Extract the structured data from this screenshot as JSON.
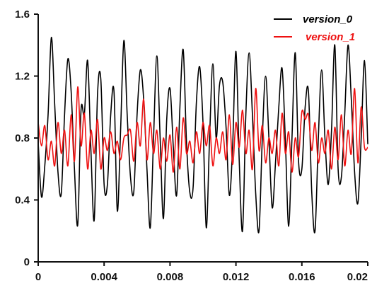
{
  "chart_data": {
    "type": "line",
    "title": "",
    "xlabel": "",
    "ylabel": "",
    "xlim": [
      0,
      0.02
    ],
    "ylim": [
      0,
      1.6
    ],
    "xticks": [
      "0",
      "0.004",
      "0.008",
      "0.012",
      "0.016",
      "0.02"
    ],
    "yticks": [
      "0",
      "0.4",
      "0.8",
      "1.2",
      "1.6"
    ],
    "grid": false,
    "legend_position": "top-right",
    "series": [
      {
        "name": "version_0",
        "color": "#000000",
        "x": [
          0.0,
          0.0002,
          0.0004,
          0.0006,
          0.0008,
          0.001,
          0.0012,
          0.0014,
          0.0016,
          0.0018,
          0.002,
          0.0022,
          0.0024,
          0.0026,
          0.0028,
          0.003,
          0.0032,
          0.0034,
          0.0036,
          0.0038,
          0.004,
          0.0042,
          0.0044,
          0.0046,
          0.0048,
          0.005,
          0.0052,
          0.0054,
          0.0056,
          0.0058,
          0.006,
          0.0062,
          0.0064,
          0.0066,
          0.0068,
          0.007,
          0.0072,
          0.0074,
          0.0076,
          0.0078,
          0.008,
          0.0082,
          0.0084,
          0.0086,
          0.0088,
          0.009,
          0.0092,
          0.0094,
          0.0096,
          0.0098,
          0.01,
          0.0102,
          0.0104,
          0.0106,
          0.0108,
          0.011,
          0.0112,
          0.0114,
          0.0116,
          0.0118,
          0.012,
          0.0122,
          0.0124,
          0.0126,
          0.0128,
          0.013,
          0.0132,
          0.0134,
          0.0136,
          0.0138,
          0.014,
          0.0142,
          0.0144,
          0.0146,
          0.0148,
          0.015,
          0.0152,
          0.0154,
          0.0156,
          0.0158,
          0.016,
          0.0162,
          0.0164,
          0.0166,
          0.0168,
          0.017,
          0.0172,
          0.0174,
          0.0176,
          0.0178,
          0.018,
          0.0182,
          0.0184,
          0.0186,
          0.0188,
          0.019,
          0.0192,
          0.0194,
          0.0196,
          0.0198,
          0.02
        ],
        "y": [
          0.77,
          0.42,
          0.62,
          0.95,
          1.45,
          1.02,
          0.58,
          0.44,
          0.95,
          1.31,
          1.1,
          0.6,
          0.24,
          0.98,
          0.95,
          1.3,
          0.72,
          0.27,
          1.08,
          1.18,
          0.5,
          0.5,
          0.95,
          1.1,
          0.33,
          0.85,
          1.43,
          0.95,
          0.55,
          0.45,
          0.95,
          1.24,
          1.05,
          0.6,
          0.22,
          0.8,
          1.33,
          0.8,
          0.28,
          0.92,
          1.12,
          0.74,
          0.43,
          1.0,
          1.37,
          0.77,
          0.45,
          0.48,
          1.03,
          1.26,
          0.9,
          0.22,
          0.8,
          1.28,
          0.8,
          1.14,
          1.16,
          0.87,
          0.43,
          0.75,
          1.36,
          0.65,
          0.2,
          0.95,
          1.35,
          0.95,
          0.44,
          0.2,
          0.8,
          1.2,
          0.8,
          0.35,
          0.64,
          1.0,
          1.25,
          0.78,
          0.23,
          0.8,
          1.35,
          0.65,
          0.6,
          1.0,
          1.1,
          0.45,
          0.2,
          0.8,
          1.24,
          0.8,
          0.5,
          0.85,
          1.4,
          0.6,
          0.55,
          0.95,
          1.4,
          1.05,
          0.58,
          0.38,
          0.8,
          1.3,
          0.76
        ]
      },
      {
        "name": "version_1",
        "color": "#ee1111",
        "x": [
          0.0,
          0.0002,
          0.0004,
          0.0006,
          0.0008,
          0.001,
          0.0012,
          0.0014,
          0.0016,
          0.0018,
          0.002,
          0.0022,
          0.0024,
          0.0026,
          0.0028,
          0.003,
          0.0032,
          0.0034,
          0.0036,
          0.0038,
          0.004,
          0.0042,
          0.0044,
          0.0046,
          0.0048,
          0.005,
          0.0052,
          0.0054,
          0.0056,
          0.0058,
          0.006,
          0.0062,
          0.0064,
          0.0066,
          0.0068,
          0.007,
          0.0072,
          0.0074,
          0.0076,
          0.0078,
          0.008,
          0.0082,
          0.0084,
          0.0086,
          0.0088,
          0.009,
          0.0092,
          0.0094,
          0.0096,
          0.0098,
          0.01,
          0.0102,
          0.0104,
          0.0106,
          0.0108,
          0.011,
          0.0112,
          0.0114,
          0.0116,
          0.0118,
          0.012,
          0.0122,
          0.0124,
          0.0126,
          0.0128,
          0.013,
          0.0132,
          0.0134,
          0.0136,
          0.0138,
          0.014,
          0.0142,
          0.0144,
          0.0146,
          0.0148,
          0.015,
          0.0152,
          0.0154,
          0.0156,
          0.0158,
          0.016,
          0.0162,
          0.0164,
          0.0166,
          0.0168,
          0.017,
          0.0172,
          0.0174,
          0.0176,
          0.0178,
          0.018,
          0.0182,
          0.0184,
          0.0186,
          0.0188,
          0.019,
          0.0192,
          0.0194,
          0.0196,
          0.0198,
          0.02
        ],
        "y": [
          0.9,
          0.75,
          0.88,
          0.66,
          0.78,
          0.62,
          0.9,
          0.7,
          0.85,
          0.62,
          0.95,
          0.65,
          1.13,
          0.75,
          0.96,
          0.6,
          0.85,
          0.7,
          0.92,
          0.6,
          0.8,
          0.72,
          0.84,
          0.7,
          0.78,
          0.66,
          0.8,
          0.82,
          0.85,
          0.65,
          0.9,
          0.75,
          1.05,
          0.66,
          0.9,
          0.7,
          0.85,
          0.6,
          0.8,
          0.65,
          0.82,
          0.58,
          0.87,
          0.6,
          0.93,
          0.7,
          0.78,
          0.64,
          0.84,
          0.7,
          0.9,
          0.75,
          0.88,
          0.62,
          0.8,
          0.7,
          0.84,
          0.66,
          0.95,
          0.63,
          0.9,
          0.74,
          0.98,
          0.7,
          0.85,
          0.6,
          1.12,
          0.72,
          0.88,
          0.64,
          0.8,
          0.7,
          0.85,
          0.62,
          0.96,
          0.7,
          0.84,
          0.58,
          0.8,
          0.68,
          0.97,
          0.92,
          0.95,
          0.72,
          0.9,
          0.64,
          0.8,
          0.7,
          0.85,
          0.6,
          0.87,
          0.66,
          0.95,
          0.62,
          0.85,
          0.7,
          1.12,
          0.64,
          1.0,
          0.74,
          0.74
        ]
      }
    ]
  }
}
